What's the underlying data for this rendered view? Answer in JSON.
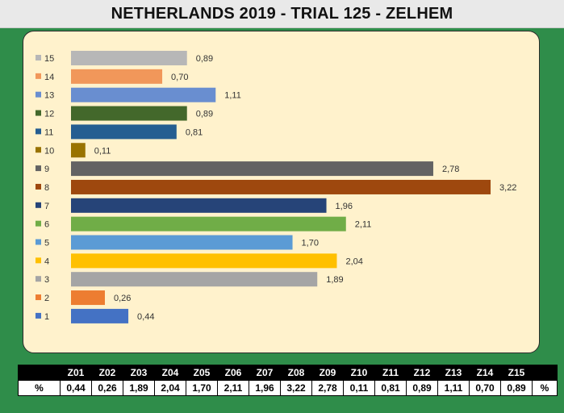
{
  "title": "NETHERLANDS 2019 - TRIAL 125 - ZELHEM",
  "chart_data": {
    "type": "bar",
    "orientation": "horizontal",
    "title": "NETHERLANDS 2019 - TRIAL 125 - ZELHEM",
    "categories": [
      "1",
      "2",
      "3",
      "4",
      "5",
      "6",
      "7",
      "8",
      "9",
      "10",
      "11",
      "12",
      "13",
      "14",
      "15"
    ],
    "values": [
      0.44,
      0.26,
      1.89,
      2.04,
      1.7,
      2.11,
      1.96,
      3.22,
      2.78,
      0.11,
      0.81,
      0.89,
      1.11,
      0.7,
      0.89
    ],
    "value_labels": [
      "0,44",
      "0,26",
      "1,89",
      "2,04",
      "1,70",
      "2,11",
      "1,96",
      "3,22",
      "2,78",
      "0,11",
      "0,81",
      "0,89",
      "1,11",
      "0,70",
      "0,89"
    ],
    "colors": [
      "#4472c4",
      "#ed7d31",
      "#a5a5a5",
      "#ffc000",
      "#5b9bd5",
      "#70ad47",
      "#264478",
      "#9e480e",
      "#636363",
      "#997300",
      "#255e91",
      "#43682b",
      "#698ed0",
      "#f1975a",
      "#b7b7b7"
    ],
    "xlim": [
      0,
      3.22
    ],
    "grid": false,
    "axis_labels_shown": false
  },
  "table": {
    "row_label": "%",
    "row_end_label": "%",
    "headers": [
      "Z01",
      "Z02",
      "Z03",
      "Z04",
      "Z05",
      "Z06",
      "Z07",
      "Z08",
      "Z09",
      "Z10",
      "Z11",
      "Z12",
      "Z13",
      "Z14",
      "Z15"
    ],
    "values": [
      "0,44",
      "0,26",
      "1,89",
      "2,04",
      "1,70",
      "2,11",
      "1,96",
      "3,22",
      "2,78",
      "0,11",
      "0,81",
      "0,89",
      "1,11",
      "0,70",
      "0,89"
    ]
  }
}
